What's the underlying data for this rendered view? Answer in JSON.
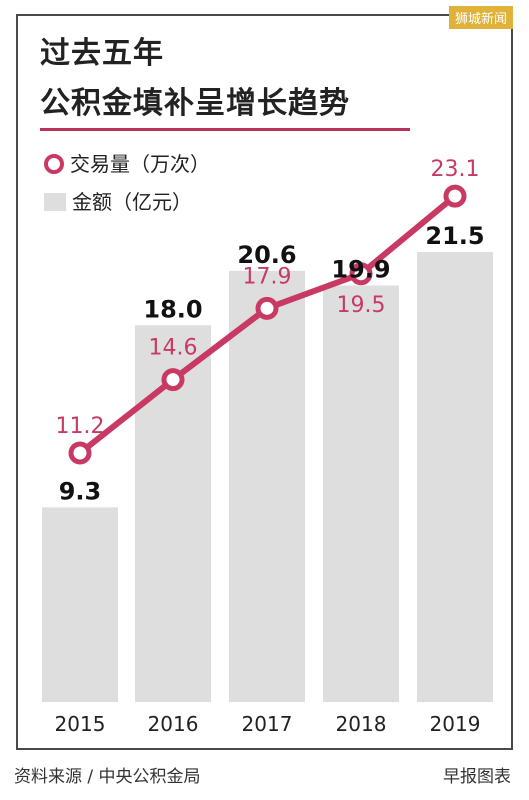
{
  "watermark": "狮城新闻",
  "title_line1": "过去五年",
  "title_line2": "公积金填补呈增长趋势",
  "source": "资料来源 / 中央公积金局",
  "credit": "早报图表",
  "colors": {
    "line": "#c83a64",
    "bar": "#dedede",
    "bar_label": "#111111"
  },
  "chart_data": {
    "type": "bar",
    "categories": [
      "2015",
      "2016",
      "2017",
      "2018",
      "2019"
    ],
    "series": [
      {
        "name": "金额（亿元）",
        "kind": "bar",
        "values": [
          9.3,
          18.0,
          20.6,
          19.9,
          21.5
        ],
        "labels": [
          "9.3",
          "18.0",
          "20.6",
          "19.9",
          "21.5"
        ]
      },
      {
        "name": "交易量（万次）",
        "kind": "line",
        "values": [
          11.2,
          14.6,
          17.9,
          19.5,
          23.1
        ],
        "labels": [
          "11.2",
          "14.6",
          "17.9",
          "19.5",
          "23.1"
        ]
      }
    ],
    "legend": [
      {
        "marker": "circle",
        "label": "交易量（万次）"
      },
      {
        "marker": "box",
        "label": "金额（亿元）"
      }
    ],
    "legend_position": "top-left",
    "grid": false
  }
}
